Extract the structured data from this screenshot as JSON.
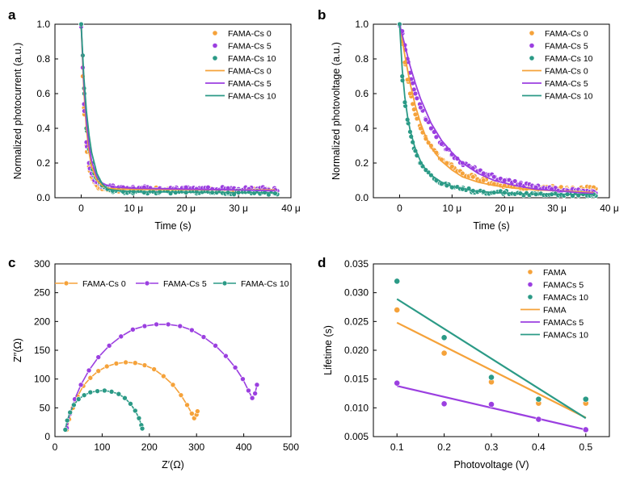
{
  "colors": {
    "cs0": "#F5A23A",
    "cs5": "#9B3FE0",
    "cs10": "#2B9A86"
  },
  "chart_data": [
    {
      "panel": "a",
      "type": "scatter",
      "xlabel": "Time (s)",
      "ylabel": "Normalized photocurrent (a.u.)",
      "xlim": [
        -5,
        40
      ],
      "ylim": [
        0,
        1.0
      ],
      "xticks": [
        0,
        10,
        20,
        30,
        40
      ],
      "xtick_labels": [
        "0",
        "10 μ",
        "20 μ",
        "30 μ",
        "40 μ"
      ],
      "yticks": [
        0,
        0.2,
        0.4,
        0.6,
        0.8,
        1.0
      ],
      "ytick_labels": [
        "0.0",
        "0.2",
        "0.4",
        "0.6",
        "0.8",
        "1.0"
      ],
      "legend": [
        "FAMA-Cs 0",
        "FAMA-Cs 5",
        "FAMA-Cs 10",
        "FAMA-Cs 0",
        "FAMA-Cs 5",
        "FAMA-Cs 10"
      ],
      "series": [
        {
          "name": "FAMA-Cs 0",
          "color": "cs0",
          "x": [
            0.0,
            0.3,
            0.6,
            1.0,
            1.5,
            2.0,
            2.5,
            3.0,
            3.5,
            4.0,
            5.0,
            6.0,
            8.0,
            10.0,
            12.0,
            15.0,
            18.0,
            20.0,
            22.0,
            25.0,
            28.0,
            30.0,
            32.0,
            35.0,
            37.0
          ],
          "y": [
            1.0,
            0.7,
            0.48,
            0.3,
            0.18,
            0.12,
            0.09,
            0.07,
            0.06,
            0.05,
            0.045,
            0.045,
            0.045,
            0.05,
            0.045,
            0.05,
            0.045,
            0.045,
            0.05,
            0.045,
            0.04,
            0.045,
            0.04,
            0.045,
            0.04
          ],
          "fit_x": [
            0.0,
            0.5,
            1.0,
            1.5,
            2.0,
            3.0,
            4.0,
            5.0,
            7.0,
            10.0,
            20.0,
            30.0,
            37.0
          ],
          "fit_y": [
            1.0,
            0.62,
            0.4,
            0.26,
            0.18,
            0.1,
            0.07,
            0.055,
            0.05,
            0.048,
            0.046,
            0.045,
            0.045
          ]
        },
        {
          "name": "FAMA-Cs 5",
          "color": "cs5",
          "x": [
            0.0,
            0.3,
            0.6,
            1.0,
            1.5,
            2.0,
            2.5,
            3.0,
            3.5,
            4.0,
            5.0,
            6.0,
            8.0,
            10.0,
            12.0,
            15.0,
            18.0,
            20.0,
            22.0,
            25.0,
            28.0,
            30.0,
            32.0,
            35.0,
            37.0
          ],
          "y": [
            1.0,
            0.75,
            0.5,
            0.32,
            0.2,
            0.14,
            0.1,
            0.09,
            0.08,
            0.07,
            0.065,
            0.06,
            0.06,
            0.055,
            0.06,
            0.055,
            0.05,
            0.06,
            0.05,
            0.05,
            0.055,
            0.05,
            0.05,
            0.05,
            0.045
          ],
          "fit_x": [
            0.0,
            0.5,
            1.0,
            1.5,
            2.0,
            3.0,
            4.0,
            5.0,
            7.0,
            10.0,
            20.0,
            30.0,
            37.0
          ],
          "fit_y": [
            1.0,
            0.66,
            0.44,
            0.3,
            0.21,
            0.12,
            0.085,
            0.07,
            0.06,
            0.055,
            0.05,
            0.045,
            0.04
          ]
        },
        {
          "name": "FAMA-Cs 10",
          "color": "cs10",
          "x": [
            0.0,
            0.3,
            0.6,
            1.0,
            1.5,
            2.0,
            2.5,
            3.0,
            3.5,
            4.0,
            5.0,
            6.0,
            8.0,
            10.0,
            12.0,
            15.0,
            18.0,
            20.0,
            22.0,
            25.0,
            28.0,
            30.0,
            32.0,
            35.0,
            37.0
          ],
          "y": [
            1.0,
            0.82,
            0.6,
            0.4,
            0.28,
            0.2,
            0.14,
            0.11,
            0.09,
            0.07,
            0.05,
            0.04,
            0.035,
            0.035,
            0.03,
            0.035,
            0.03,
            0.03,
            0.035,
            0.03,
            0.03,
            0.03,
            0.035,
            0.03,
            0.025
          ],
          "fit_x": [
            0.0,
            0.5,
            1.0,
            1.5,
            2.0,
            3.0,
            4.0,
            5.0,
            7.0,
            10.0,
            20.0,
            30.0,
            37.0
          ],
          "fit_y": [
            1.0,
            0.7,
            0.5,
            0.36,
            0.26,
            0.14,
            0.08,
            0.05,
            0.04,
            0.035,
            0.032,
            0.03,
            0.028
          ]
        }
      ]
    },
    {
      "panel": "b",
      "type": "scatter",
      "xlabel": "Time (s)",
      "ylabel": "Normalized photovoltage (a.u.)",
      "xlim": [
        -5,
        40
      ],
      "ylim": [
        0,
        1.0
      ],
      "xticks": [
        0,
        10,
        20,
        30,
        40
      ],
      "xtick_labels": [
        "0",
        "10 μ",
        "20 μ",
        "30 μ",
        "40 μ"
      ],
      "yticks": [
        0,
        0.2,
        0.4,
        0.6,
        0.8,
        1.0
      ],
      "ytick_labels": [
        "0.0",
        "0.2",
        "0.4",
        "0.6",
        "0.8",
        "1.0"
      ],
      "legend": [
        "FAMA-Cs 0",
        "FAMA-Cs 5",
        "FAMA-Cs 10",
        "FAMA-Cs 0",
        "FAMA-Cs 5",
        "FAMA-Cs 10"
      ],
      "series": [
        {
          "name": "FAMA-Cs 0",
          "color": "cs0",
          "x": [
            0.0,
            0.5,
            1.0,
            1.5,
            2.0,
            2.5,
            3.0,
            4.0,
            5.0,
            6.0,
            7.0,
            8.0,
            9.0,
            10.0,
            12.0,
            14.0,
            16.0,
            18.0,
            20.0,
            23.0,
            26.0,
            29.0,
            32.0,
            35.0,
            37.0
          ],
          "y": [
            1.0,
            0.9,
            0.78,
            0.68,
            0.6,
            0.54,
            0.48,
            0.4,
            0.34,
            0.3,
            0.26,
            0.22,
            0.2,
            0.18,
            0.14,
            0.12,
            0.1,
            0.08,
            0.07,
            0.06,
            0.05,
            0.06,
            0.05,
            0.05,
            0.06
          ],
          "fit_x": [
            0.0,
            1.0,
            2.0,
            3.0,
            4.0,
            5.0,
            6.0,
            8.0,
            10.0,
            12.0,
            15.0,
            18.0,
            22.0,
            26.0,
            30.0,
            34.0,
            37.0
          ],
          "fit_y": [
            1.0,
            0.82,
            0.66,
            0.53,
            0.43,
            0.35,
            0.29,
            0.21,
            0.16,
            0.12,
            0.09,
            0.07,
            0.055,
            0.045,
            0.04,
            0.035,
            0.03
          ]
        },
        {
          "name": "FAMA-Cs 5",
          "color": "cs5",
          "x": [
            0.0,
            0.5,
            1.0,
            1.5,
            2.0,
            2.5,
            3.0,
            4.0,
            5.0,
            6.0,
            7.0,
            8.0,
            9.0,
            10.0,
            12.0,
            14.0,
            16.0,
            18.0,
            20.0,
            23.0,
            26.0,
            29.0,
            32.0,
            35.0,
            37.0
          ],
          "y": [
            1.0,
            0.96,
            0.88,
            0.8,
            0.72,
            0.66,
            0.6,
            0.52,
            0.45,
            0.4,
            0.35,
            0.31,
            0.28,
            0.25,
            0.2,
            0.17,
            0.14,
            0.12,
            0.1,
            0.08,
            0.06,
            0.05,
            0.04,
            0.04,
            0.035
          ],
          "fit_x": [
            0.0,
            1.0,
            2.0,
            3.0,
            4.0,
            5.0,
            6.0,
            8.0,
            10.0,
            12.0,
            15.0,
            18.0,
            22.0,
            26.0,
            30.0,
            34.0,
            37.0
          ],
          "fit_y": [
            1.0,
            0.88,
            0.76,
            0.66,
            0.57,
            0.5,
            0.43,
            0.33,
            0.26,
            0.2,
            0.14,
            0.1,
            0.07,
            0.05,
            0.04,
            0.03,
            0.025
          ]
        },
        {
          "name": "FAMA-Cs 10",
          "color": "cs10",
          "x": [
            0.0,
            0.5,
            1.0,
            1.5,
            2.0,
            2.5,
            3.0,
            4.0,
            5.0,
            6.0,
            7.0,
            8.0,
            9.0,
            10.0,
            12.0,
            14.0,
            16.0,
            18.0,
            20.0,
            23.0,
            26.0,
            29.0,
            32.0,
            35.0,
            37.0
          ],
          "y": [
            1.0,
            0.7,
            0.55,
            0.45,
            0.38,
            0.32,
            0.27,
            0.2,
            0.16,
            0.13,
            0.1,
            0.08,
            0.07,
            0.06,
            0.05,
            0.04,
            0.035,
            0.03,
            0.03,
            0.025,
            0.02,
            0.02,
            0.02,
            0.02,
            0.02
          ],
          "fit_x": [
            0.0,
            0.5,
            1.0,
            1.5,
            2.0,
            3.0,
            4.0,
            5.0,
            6.0,
            8.0,
            10.0,
            14.0,
            18.0,
            24.0,
            30.0,
            37.0
          ],
          "fit_y": [
            1.0,
            0.74,
            0.58,
            0.47,
            0.39,
            0.28,
            0.21,
            0.16,
            0.13,
            0.09,
            0.065,
            0.04,
            0.03,
            0.022,
            0.02,
            0.018
          ]
        }
      ]
    },
    {
      "panel": "c",
      "type": "line",
      "xlabel": "Z′(Ω)",
      "ylabel": "Z′′(Ω)",
      "xlim": [
        0,
        500
      ],
      "ylim": [
        0,
        300
      ],
      "xticks": [
        0,
        100,
        200,
        300,
        400,
        500
      ],
      "xtick_labels": [
        "0",
        "100",
        "200",
        "300",
        "400",
        "500"
      ],
      "yticks": [
        0,
        50,
        100,
        150,
        200,
        250,
        300
      ],
      "ytick_labels": [
        "0",
        "50",
        "100",
        "150",
        "200",
        "250",
        "300"
      ],
      "legend": [
        "FAMA-Cs 0",
        "FAMA-Cs 5",
        "FAMA-Cs 10"
      ],
      "series": [
        {
          "name": "FAMA-Cs 0",
          "color": "cs0",
          "x": [
            25,
            30,
            38,
            48,
            60,
            75,
            92,
            110,
            130,
            150,
            170,
            190,
            210,
            230,
            250,
            267,
            280,
            290,
            295,
            300,
            302
          ],
          "y": [
            12,
            30,
            50,
            70,
            88,
            102,
            114,
            122,
            127,
            129,
            128,
            124,
            117,
            105,
            90,
            72,
            55,
            40,
            32,
            38,
            44
          ]
        },
        {
          "name": "FAMA-Cs 5",
          "color": "cs5",
          "x": [
            25,
            32,
            42,
            55,
            72,
            92,
            115,
            140,
            165,
            190,
            215,
            240,
            265,
            290,
            315,
            340,
            362,
            382,
            398,
            410,
            418,
            424,
            428
          ],
          "y": [
            15,
            40,
            65,
            90,
            115,
            138,
            158,
            174,
            186,
            192,
            195,
            195,
            192,
            185,
            173,
            158,
            140,
            120,
            100,
            80,
            67,
            75,
            90
          ]
        },
        {
          "name": "FAMA-Cs 10",
          "color": "cs10",
          "x": [
            22,
            26,
            32,
            40,
            50,
            62,
            75,
            90,
            105,
            120,
            135,
            148,
            160,
            170,
            178,
            183,
            185
          ],
          "y": [
            12,
            28,
            42,
            55,
            65,
            72,
            77,
            79,
            80,
            78,
            74,
            67,
            57,
            45,
            32,
            20,
            14
          ]
        }
      ]
    },
    {
      "panel": "d",
      "type": "scatter",
      "xlabel": "Photovoltage (V)",
      "ylabel": "Lifetime (s)",
      "xlim": [
        0.05,
        0.55
      ],
      "ylim": [
        0.005,
        0.035
      ],
      "xticks": [
        0.1,
        0.2,
        0.3,
        0.4,
        0.5
      ],
      "xtick_labels": [
        "0.1",
        "0.2",
        "0.3",
        "0.4",
        "0.5"
      ],
      "yticks": [
        0.005,
        0.01,
        0.015,
        0.02,
        0.025,
        0.03,
        0.035
      ],
      "ytick_labels": [
        "0.005",
        "0.010",
        "0.015",
        "0.020",
        "0.025",
        "0.030",
        "0.035"
      ],
      "legend": [
        "FAMA",
        "FAMACs 5",
        "FAMACs 10",
        "FAMA",
        "FAMACs 5",
        "FAMACs 10"
      ],
      "series": [
        {
          "name": "FAMA",
          "color": "cs0",
          "x": [
            0.1,
            0.2,
            0.3,
            0.4,
            0.5
          ],
          "y": [
            0.027,
            0.0195,
            0.0145,
            0.0108,
            0.0108
          ],
          "fit_x": [
            0.1,
            0.5
          ],
          "fit_y": [
            0.0248,
            0.0083
          ]
        },
        {
          "name": "FAMACs 5",
          "color": "cs5",
          "x": [
            0.1,
            0.2,
            0.3,
            0.4,
            0.5
          ],
          "y": [
            0.0143,
            0.0107,
            0.0106,
            0.008,
            0.0062
          ],
          "fit_x": [
            0.1,
            0.5
          ],
          "fit_y": [
            0.0138,
            0.0062
          ]
        },
        {
          "name": "FAMACs 10",
          "color": "cs10",
          "x": [
            0.1,
            0.2,
            0.3,
            0.4,
            0.5
          ],
          "y": [
            0.032,
            0.0222,
            0.0153,
            0.0115,
            0.0115
          ],
          "fit_x": [
            0.1,
            0.5
          ],
          "fit_y": [
            0.0289,
            0.0082
          ]
        }
      ]
    }
  ]
}
